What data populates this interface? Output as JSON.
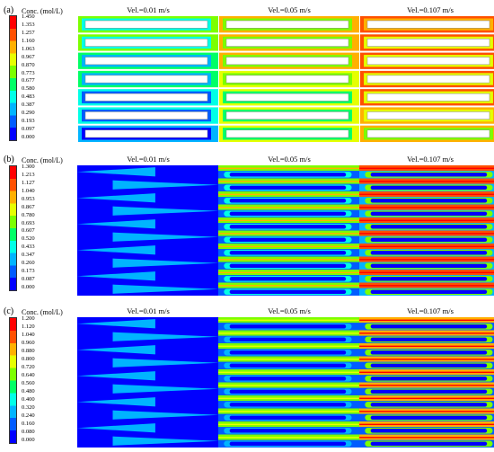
{
  "panels": [
    {
      "label": "(a)",
      "legend_title": "Conc. (mol/L)",
      "ticks": [
        "1.450",
        "1.353",
        "1.257",
        "1.160",
        "1.063",
        "0.967",
        "0.870",
        "0.773",
        "0.677",
        "0.580",
        "0.483",
        "0.387",
        "0.290",
        "0.193",
        "0.097",
        "0.000"
      ],
      "plots": [
        {
          "title": "Vel.=0.01 m/s",
          "level": 0.55
        },
        {
          "title": "Vel.=0.05 m/s",
          "level": 0.75
        },
        {
          "title": "Vel.=0.107 m/s",
          "level": 0.88
        }
      ]
    },
    {
      "label": "(b)",
      "legend_title": "Conc. (mol/L)",
      "ticks": [
        "1.300",
        "1.213",
        "1.127",
        "1.040",
        "0.953",
        "0.867",
        "0.780",
        "0.693",
        "0.607",
        "0.520",
        "0.433",
        "0.347",
        "0.260",
        "0.173",
        "0.087",
        "0.000"
      ],
      "plots": [
        {
          "title": "Vel.=0.01 m/s",
          "level": 0.12
        },
        {
          "title": "Vel.=0.05 m/s",
          "level": 0.55
        },
        {
          "title": "Vel.=0.107 m/s",
          "level": 0.8
        }
      ]
    },
    {
      "label": "(c)",
      "legend_title": "Conc. (mol/L)",
      "ticks": [
        "1.200",
        "1.120",
        "1.040",
        "0.960",
        "0.880",
        "0.800",
        "0.720",
        "0.640",
        "0.560",
        "0.480",
        "0.400",
        "0.320",
        "0.240",
        "0.160",
        "0.080",
        "0.000"
      ],
      "plots": [
        {
          "title": "Vel.=0.01 m/s",
          "level": 0.08
        },
        {
          "title": "Vel.=0.05 m/s",
          "level": 0.5
        },
        {
          "title": "Vel.=0.107 m/s",
          "level": 0.75
        }
      ]
    }
  ],
  "colormap": [
    "#0000ff",
    "#005cff",
    "#00b4ff",
    "#00ffe6",
    "#00ff66",
    "#7cff00",
    "#e6ff00",
    "#ffb000",
    "#ff5000",
    "#ff0000"
  ]
}
